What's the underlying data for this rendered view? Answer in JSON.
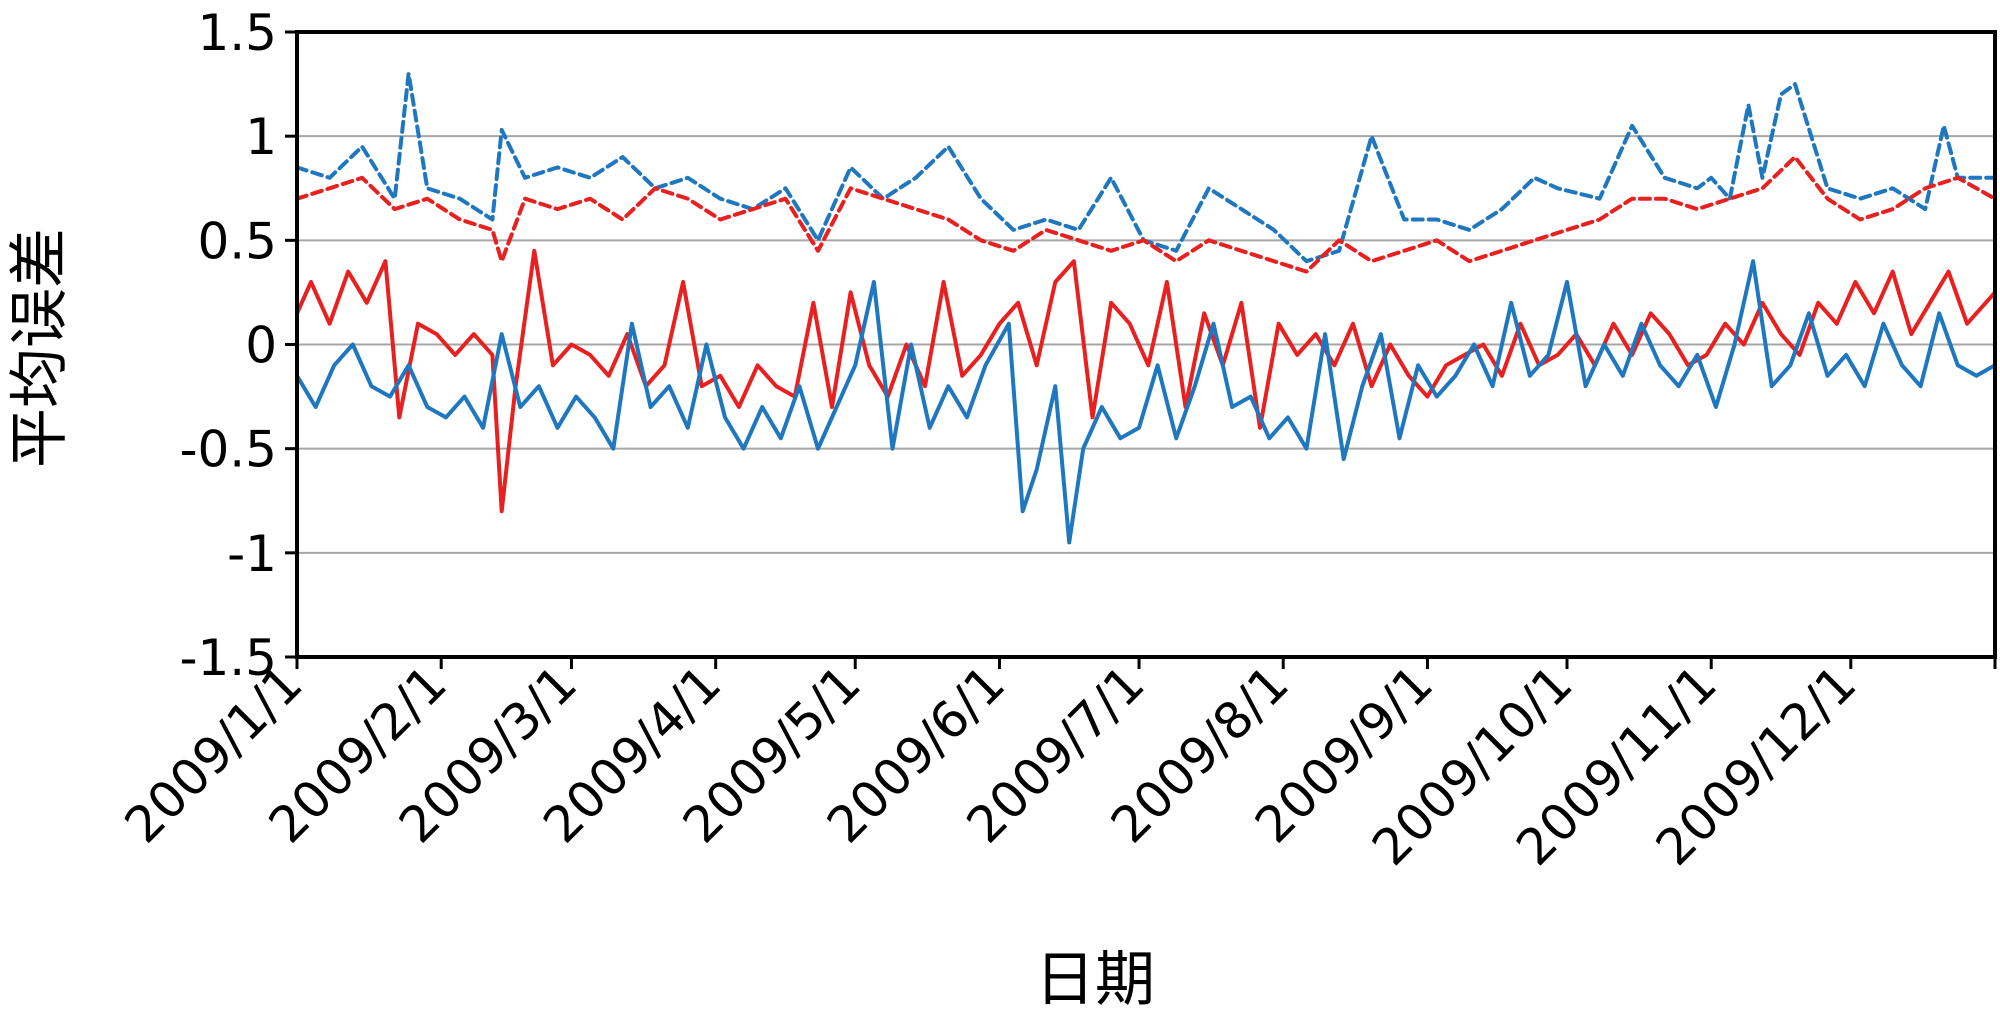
{
  "chart_data": {
    "type": "line",
    "title": "",
    "xlabel": "日期",
    "ylabel": "平均误差",
    "ylim": [
      -1.5,
      1.5
    ],
    "yticks": [
      1.5,
      1,
      0.5,
      0,
      -0.5,
      -1,
      -1.5
    ],
    "ytick_labels": [
      "1.5",
      "1",
      "0.5",
      "0",
      "-0.5",
      "-1",
      "-1.5"
    ],
    "xlim": [
      "2009-01-01",
      "2010-01-01"
    ],
    "xticks": [
      "2009-01-01",
      "2009-02-01",
      "2009-03-01",
      "2009-04-01",
      "2009-05-01",
      "2009-06-01",
      "2009-07-01",
      "2009-08-01",
      "2009-09-01",
      "2009-10-01",
      "2009-11-01",
      "2009-12-01"
    ],
    "xtick_labels": [
      "2009/1/1",
      "2009/2/1",
      "2009/3/1",
      "2009/4/1",
      "2009/5/1",
      "2009/6/1",
      "2009/7/1",
      "2009/8/1",
      "2009/9/1",
      "2009/10/1",
      "2009/11/1",
      "2009/12/1"
    ],
    "grid": "horizontal",
    "series": [
      {
        "color": "#1f77c0",
        "style": "dashed",
        "x": [
          "2009-01-01",
          "2009-01-08",
          "2009-01-15",
          "2009-01-22",
          "2009-01-25",
          "2009-01-29",
          "2009-02-05",
          "2009-02-12",
          "2009-02-14",
          "2009-02-19",
          "2009-02-26",
          "2009-03-05",
          "2009-03-12",
          "2009-03-19",
          "2009-03-26",
          "2009-04-02",
          "2009-04-09",
          "2009-04-16",
          "2009-04-23",
          "2009-04-30",
          "2009-05-07",
          "2009-05-14",
          "2009-05-21",
          "2009-05-28",
          "2009-06-04",
          "2009-06-11",
          "2009-06-18",
          "2009-06-25",
          "2009-07-02",
          "2009-07-09",
          "2009-07-16",
          "2009-07-23",
          "2009-07-30",
          "2009-08-06",
          "2009-08-13",
          "2009-08-20",
          "2009-08-27",
          "2009-09-03",
          "2009-09-10",
          "2009-09-17",
          "2009-09-24",
          "2009-09-29",
          "2009-10-08",
          "2009-10-15",
          "2009-10-22",
          "2009-10-29",
          "2009-11-01",
          "2009-11-05",
          "2009-11-09",
          "2009-11-12",
          "2009-11-16",
          "2009-11-19",
          "2009-11-26",
          "2009-12-03",
          "2009-12-10",
          "2009-12-17",
          "2009-12-21",
          "2009-12-24",
          "2010-01-01"
        ],
        "y": [
          0.85,
          0.8,
          0.95,
          0.7,
          1.3,
          0.75,
          0.7,
          0.6,
          1.03,
          0.8,
          0.85,
          0.8,
          0.9,
          0.75,
          0.8,
          0.7,
          0.65,
          0.75,
          0.5,
          0.85,
          0.7,
          0.8,
          0.95,
          0.7,
          0.55,
          0.6,
          0.55,
          0.8,
          0.5,
          0.45,
          0.75,
          0.65,
          0.55,
          0.4,
          0.45,
          1.0,
          0.6,
          0.6,
          0.55,
          0.65,
          0.8,
          0.75,
          0.7,
          1.05,
          0.8,
          0.75,
          0.8,
          0.7,
          1.15,
          0.8,
          1.2,
          1.25,
          0.75,
          0.7,
          0.75,
          0.65,
          1.05,
          0.8,
          0.8
        ]
      },
      {
        "color": "#e8201f",
        "style": "dashed",
        "x": [
          "2009-01-01",
          "2009-01-08",
          "2009-01-15",
          "2009-01-22",
          "2009-01-29",
          "2009-02-05",
          "2009-02-12",
          "2009-02-14",
          "2009-02-19",
          "2009-02-26",
          "2009-03-05",
          "2009-03-12",
          "2009-03-19",
          "2009-03-26",
          "2009-04-02",
          "2009-04-09",
          "2009-04-16",
          "2009-04-23",
          "2009-04-30",
          "2009-05-07",
          "2009-05-14",
          "2009-05-21",
          "2009-05-28",
          "2009-06-04",
          "2009-06-11",
          "2009-06-18",
          "2009-06-25",
          "2009-07-02",
          "2009-07-09",
          "2009-07-16",
          "2009-07-23",
          "2009-07-30",
          "2009-08-06",
          "2009-08-13",
          "2009-08-20",
          "2009-08-27",
          "2009-09-03",
          "2009-09-10",
          "2009-09-17",
          "2009-09-24",
          "2009-10-01",
          "2009-10-08",
          "2009-10-15",
          "2009-10-22",
          "2009-10-29",
          "2009-11-05",
          "2009-11-12",
          "2009-11-19",
          "2009-11-26",
          "2009-12-03",
          "2009-12-10",
          "2009-12-17",
          "2009-12-24",
          "2010-01-01"
        ],
        "y": [
          0.7,
          0.75,
          0.8,
          0.65,
          0.7,
          0.6,
          0.55,
          0.4,
          0.7,
          0.65,
          0.7,
          0.6,
          0.75,
          0.7,
          0.6,
          0.65,
          0.7,
          0.45,
          0.75,
          0.7,
          0.65,
          0.6,
          0.5,
          0.45,
          0.55,
          0.5,
          0.45,
          0.5,
          0.4,
          0.5,
          0.45,
          0.4,
          0.35,
          0.5,
          0.4,
          0.45,
          0.5,
          0.4,
          0.45,
          0.5,
          0.55,
          0.6,
          0.7,
          0.7,
          0.65,
          0.7,
          0.75,
          0.9,
          0.7,
          0.6,
          0.65,
          0.75,
          0.8,
          0.7
        ]
      },
      {
        "color": "#e8201f",
        "style": "solid",
        "x": [
          "2009-01-01",
          "2009-01-04",
          "2009-01-08",
          "2009-01-12",
          "2009-01-16",
          "2009-01-20",
          "2009-01-23",
          "2009-01-27",
          "2009-01-31",
          "2009-02-04",
          "2009-02-08",
          "2009-02-12",
          "2009-02-14",
          "2009-02-17",
          "2009-02-21",
          "2009-02-25",
          "2009-03-01",
          "2009-03-05",
          "2009-03-09",
          "2009-03-13",
          "2009-03-17",
          "2009-03-21",
          "2009-03-25",
          "2009-03-29",
          "2009-04-02",
          "2009-04-06",
          "2009-04-10",
          "2009-04-14",
          "2009-04-18",
          "2009-04-22",
          "2009-04-26",
          "2009-04-30",
          "2009-05-04",
          "2009-05-08",
          "2009-05-12",
          "2009-05-16",
          "2009-05-20",
          "2009-05-24",
          "2009-05-28",
          "2009-06-01",
          "2009-06-05",
          "2009-06-09",
          "2009-06-13",
          "2009-06-17",
          "2009-06-21",
          "2009-06-25",
          "2009-06-29",
          "2009-07-03",
          "2009-07-07",
          "2009-07-11",
          "2009-07-15",
          "2009-07-19",
          "2009-07-23",
          "2009-07-27",
          "2009-07-31",
          "2009-08-04",
          "2009-08-08",
          "2009-08-12",
          "2009-08-16",
          "2009-08-20",
          "2009-08-24",
          "2009-08-28",
          "2009-09-01",
          "2009-09-05",
          "2009-09-09",
          "2009-09-13",
          "2009-09-17",
          "2009-09-21",
          "2009-09-25",
          "2009-09-29",
          "2009-10-03",
          "2009-10-07",
          "2009-10-11",
          "2009-10-15",
          "2009-10-19",
          "2009-10-23",
          "2009-10-27",
          "2009-10-31",
          "2009-11-04",
          "2009-11-08",
          "2009-11-12",
          "2009-11-16",
          "2009-11-20",
          "2009-11-24",
          "2009-11-28",
          "2009-12-02",
          "2009-12-06",
          "2009-12-10",
          "2009-12-14",
          "2009-12-18",
          "2009-12-22",
          "2009-12-26",
          "2010-01-01"
        ],
        "y": [
          0.15,
          0.3,
          0.1,
          0.35,
          0.2,
          0.4,
          -0.35,
          0.1,
          0.05,
          -0.05,
          0.05,
          -0.05,
          -0.8,
          -0.2,
          0.45,
          -0.1,
          0.0,
          -0.05,
          -0.15,
          0.05,
          -0.2,
          -0.1,
          0.3,
          -0.2,
          -0.15,
          -0.3,
          -0.1,
          -0.2,
          -0.25,
          0.2,
          -0.3,
          0.25,
          -0.1,
          -0.25,
          0.0,
          -0.2,
          0.3,
          -0.15,
          -0.05,
          0.1,
          0.2,
          -0.1,
          0.3,
          0.4,
          -0.35,
          0.2,
          0.1,
          -0.1,
          0.3,
          -0.3,
          0.15,
          -0.1,
          0.2,
          -0.4,
          0.1,
          -0.05,
          0.05,
          -0.1,
          0.1,
          -0.2,
          0.0,
          -0.15,
          -0.25,
          -0.1,
          -0.05,
          0.0,
          -0.15,
          0.1,
          -0.1,
          -0.05,
          0.05,
          -0.1,
          0.1,
          -0.05,
          0.15,
          0.05,
          -0.1,
          -0.05,
          0.1,
          0.0,
          0.2,
          0.05,
          -0.05,
          0.2,
          0.1,
          0.3,
          0.15,
          0.35,
          0.05,
          0.2,
          0.35,
          0.1,
          0.25
        ]
      },
      {
        "color": "#1f77c0",
        "style": "solid",
        "x": [
          "2009-01-01",
          "2009-01-05",
          "2009-01-09",
          "2009-01-13",
          "2009-01-17",
          "2009-01-21",
          "2009-01-25",
          "2009-01-29",
          "2009-02-02",
          "2009-02-06",
          "2009-02-10",
          "2009-02-14",
          "2009-02-18",
          "2009-02-22",
          "2009-02-26",
          "2009-03-02",
          "2009-03-06",
          "2009-03-10",
          "2009-03-14",
          "2009-03-18",
          "2009-03-22",
          "2009-03-26",
          "2009-03-30",
          "2009-04-03",
          "2009-04-07",
          "2009-04-11",
          "2009-04-15",
          "2009-04-19",
          "2009-04-23",
          "2009-04-27",
          "2009-05-01",
          "2009-05-05",
          "2009-05-09",
          "2009-05-13",
          "2009-05-17",
          "2009-05-21",
          "2009-05-25",
          "2009-05-29",
          "2009-06-03",
          "2009-06-06",
          "2009-06-09",
          "2009-06-13",
          "2009-06-16",
          "2009-06-19",
          "2009-06-23",
          "2009-06-27",
          "2009-07-01",
          "2009-07-05",
          "2009-07-09",
          "2009-07-13",
          "2009-07-17",
          "2009-07-21",
          "2009-07-25",
          "2009-07-29",
          "2009-08-02",
          "2009-08-06",
          "2009-08-10",
          "2009-08-14",
          "2009-08-18",
          "2009-08-22",
          "2009-08-26",
          "2009-08-30",
          "2009-09-03",
          "2009-09-07",
          "2009-09-11",
          "2009-09-15",
          "2009-09-19",
          "2009-09-23",
          "2009-09-27",
          "2009-10-01",
          "2009-10-05",
          "2009-10-09",
          "2009-10-13",
          "2009-10-17",
          "2009-10-21",
          "2009-10-25",
          "2009-10-29",
          "2009-11-02",
          "2009-11-06",
          "2009-11-10",
          "2009-11-14",
          "2009-11-18",
          "2009-11-22",
          "2009-11-26",
          "2009-11-30",
          "2009-12-04",
          "2009-12-08",
          "2009-12-12",
          "2009-12-16",
          "2009-12-20",
          "2009-12-24",
          "2009-12-28",
          "2010-01-01"
        ],
        "y": [
          -0.15,
          -0.3,
          -0.1,
          0.0,
          -0.2,
          -0.25,
          -0.1,
          -0.3,
          -0.35,
          -0.25,
          -0.4,
          0.05,
          -0.3,
          -0.2,
          -0.4,
          -0.25,
          -0.35,
          -0.5,
          0.1,
          -0.3,
          -0.2,
          -0.4,
          0.0,
          -0.35,
          -0.5,
          -0.3,
          -0.45,
          -0.2,
          -0.5,
          -0.3,
          -0.1,
          0.3,
          -0.5,
          0.0,
          -0.4,
          -0.2,
          -0.35,
          -0.1,
          0.1,
          -0.8,
          -0.6,
          -0.2,
          -0.95,
          -0.5,
          -0.3,
          -0.45,
          -0.4,
          -0.1,
          -0.45,
          -0.2,
          0.1,
          -0.3,
          -0.25,
          -0.45,
          -0.35,
          -0.5,
          0.05,
          -0.55,
          -0.2,
          0.05,
          -0.45,
          -0.1,
          -0.25,
          -0.15,
          0.0,
          -0.2,
          0.2,
          -0.15,
          -0.05,
          0.3,
          -0.2,
          0.0,
          -0.15,
          0.1,
          -0.1,
          -0.2,
          -0.05,
          -0.3,
          0.0,
          0.4,
          -0.2,
          -0.1,
          0.15,
          -0.15,
          -0.05,
          -0.2,
          0.1,
          -0.1,
          -0.2,
          0.15,
          -0.1,
          -0.15,
          -0.1
        ]
      }
    ]
  }
}
